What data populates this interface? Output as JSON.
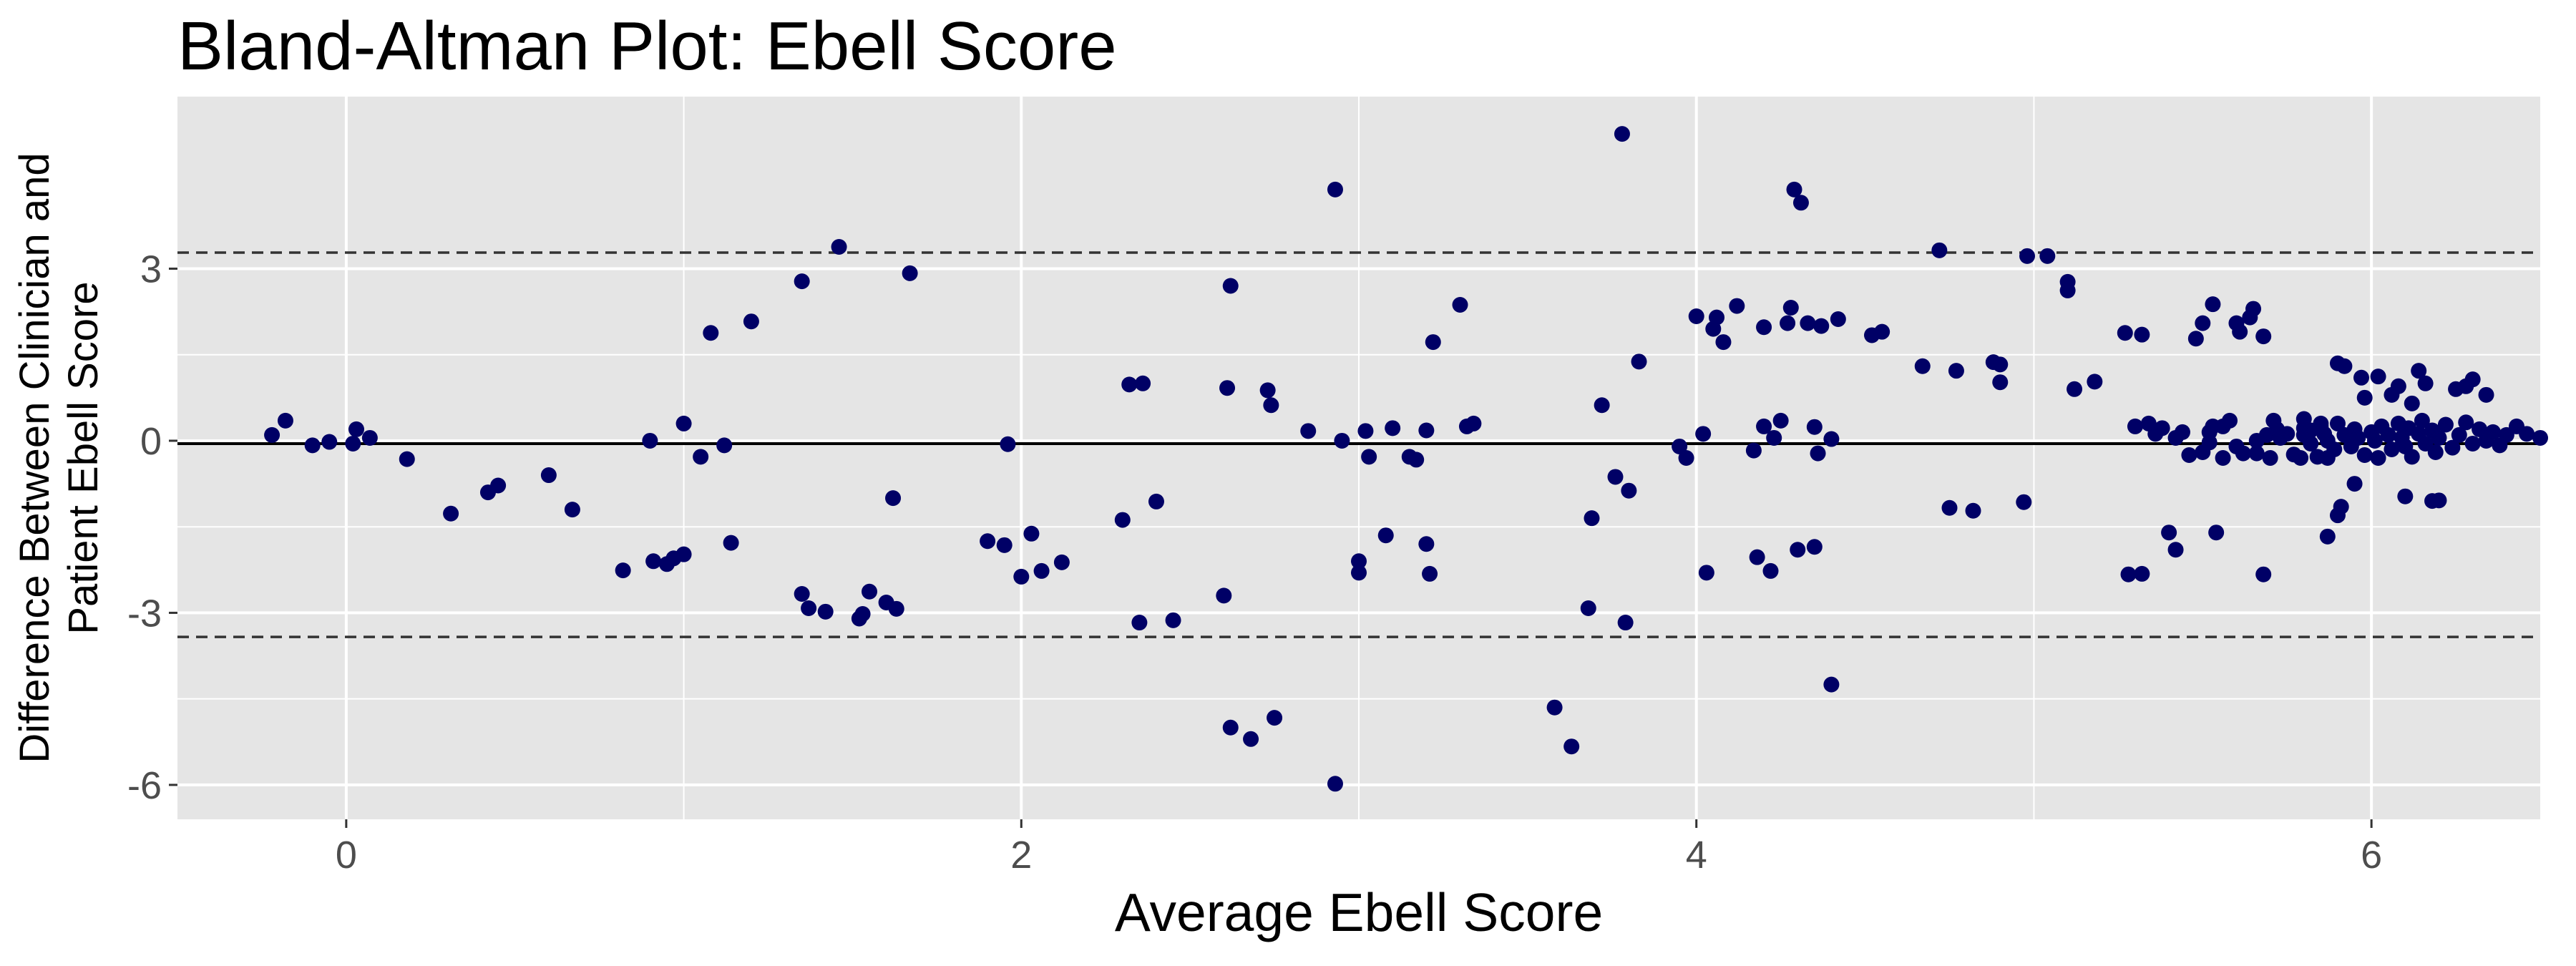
{
  "chart_data": {
    "type": "scatter",
    "title": "Bland-Altman Plot: Ebell Score",
    "xlabel": "Average Ebell Score",
    "ylabel_lines": [
      "Difference Between Clinician and",
      "Patient Ebell Score"
    ],
    "xlim": [
      -0.5,
      6.5
    ],
    "ylim": [
      -6.6,
      6.0
    ],
    "xticks": [
      0,
      2,
      4,
      6
    ],
    "xtick_labels": [
      "0",
      "2",
      "4",
      "6"
    ],
    "yticks": [
      -6,
      -3,
      0,
      3
    ],
    "ytick_labels": [
      "-6",
      "-3",
      "0",
      "3"
    ],
    "grid": true,
    "legend": "none",
    "mean_line": -0.05,
    "limits_of_agreement": [
      -3.42,
      3.28
    ],
    "colors": {
      "panel": "#e5e5e5",
      "grid": "#ffffff",
      "points": "#000066",
      "lines": "#000000"
    },
    "points": [
      [
        -0.22,
        0.1
      ],
      [
        -0.18,
        0.35
      ],
      [
        -0.1,
        -0.08
      ],
      [
        -0.05,
        -0.02
      ],
      [
        0.02,
        -0.05
      ],
      [
        0.03,
        0.2
      ],
      [
        0.07,
        0.05
      ],
      [
        0.18,
        -0.32
      ],
      [
        0.31,
        -1.27
      ],
      [
        0.42,
        -0.9
      ],
      [
        0.45,
        -0.78
      ],
      [
        0.6,
        -0.6
      ],
      [
        0.67,
        -1.2
      ],
      [
        0.82,
        -2.26
      ],
      [
        0.9,
        0.0
      ],
      [
        0.91,
        -2.1
      ],
      [
        0.95,
        -2.15
      ],
      [
        0.97,
        -2.05
      ],
      [
        1.0,
        -1.98
      ],
      [
        1.0,
        0.3
      ],
      [
        1.05,
        -0.28
      ],
      [
        1.08,
        1.88
      ],
      [
        1.12,
        -0.08
      ],
      [
        1.14,
        -1.78
      ],
      [
        1.2,
        2.08
      ],
      [
        1.35,
        -2.67
      ],
      [
        1.35,
        2.78
      ],
      [
        1.37,
        -2.92
      ],
      [
        1.42,
        -2.98
      ],
      [
        1.46,
        3.38
      ],
      [
        1.52,
        -3.1
      ],
      [
        1.53,
        -3.02
      ],
      [
        1.55,
        -2.63
      ],
      [
        1.6,
        -2.82
      ],
      [
        1.62,
        -1.0
      ],
      [
        1.63,
        -2.93
      ],
      [
        1.67,
        2.92
      ],
      [
        1.9,
        -1.75
      ],
      [
        1.95,
        -1.82
      ],
      [
        1.96,
        -0.06
      ],
      [
        2.0,
        -2.37
      ],
      [
        2.03,
        -1.62
      ],
      [
        2.06,
        -2.27
      ],
      [
        2.12,
        -2.12
      ],
      [
        2.3,
        -1.38
      ],
      [
        2.32,
        0.98
      ],
      [
        2.35,
        -3.17
      ],
      [
        2.36,
        1.0
      ],
      [
        2.4,
        -1.06
      ],
      [
        2.45,
        -3.13
      ],
      [
        2.6,
        -2.7
      ],
      [
        2.61,
        0.92
      ],
      [
        2.62,
        2.7
      ],
      [
        2.62,
        -5.0
      ],
      [
        2.68,
        -5.2
      ],
      [
        2.73,
        0.88
      ],
      [
        2.74,
        0.62
      ],
      [
        2.75,
        -4.83
      ],
      [
        2.85,
        0.17
      ],
      [
        2.93,
        4.38
      ],
      [
        2.93,
        -5.98
      ],
      [
        2.95,
        0.0
      ],
      [
        3.0,
        -2.1
      ],
      [
        3.0,
        -2.3
      ],
      [
        3.02,
        0.17
      ],
      [
        3.03,
        -0.28
      ],
      [
        3.08,
        -1.65
      ],
      [
        3.1,
        0.22
      ],
      [
        3.15,
        -0.28
      ],
      [
        3.17,
        -0.33
      ],
      [
        3.2,
        0.18
      ],
      [
        3.2,
        -1.8
      ],
      [
        3.21,
        -2.32
      ],
      [
        3.22,
        1.72
      ],
      [
        3.3,
        2.37
      ],
      [
        3.32,
        0.25
      ],
      [
        3.34,
        0.3
      ],
      [
        3.58,
        -4.65
      ],
      [
        3.63,
        -5.33
      ],
      [
        3.68,
        -2.92
      ],
      [
        3.69,
        -1.35
      ],
      [
        3.72,
        0.62
      ],
      [
        3.76,
        -0.63
      ],
      [
        3.78,
        5.35
      ],
      [
        3.79,
        -3.17
      ],
      [
        3.8,
        -0.87
      ],
      [
        3.83,
        1.38
      ],
      [
        3.95,
        -0.1
      ],
      [
        3.97,
        -0.3
      ],
      [
        4.0,
        2.17
      ],
      [
        4.02,
        0.12
      ],
      [
        4.03,
        -2.3
      ],
      [
        4.05,
        1.95
      ],
      [
        4.06,
        2.15
      ],
      [
        4.08,
        1.72
      ],
      [
        4.12,
        2.35
      ],
      [
        4.17,
        -0.17
      ],
      [
        4.18,
        -2.03
      ],
      [
        4.2,
        0.25
      ],
      [
        4.2,
        1.98
      ],
      [
        4.22,
        -2.27
      ],
      [
        4.23,
        0.05
      ],
      [
        4.25,
        0.35
      ],
      [
        4.27,
        2.05
      ],
      [
        4.28,
        2.32
      ],
      [
        4.29,
        4.38
      ],
      [
        4.3,
        -1.9
      ],
      [
        4.31,
        4.15
      ],
      [
        4.33,
        2.05
      ],
      [
        4.35,
        -1.85
      ],
      [
        4.35,
        0.24
      ],
      [
        4.36,
        -0.22
      ],
      [
        4.37,
        2.0
      ],
      [
        4.4,
        0.03
      ],
      [
        4.4,
        -4.25
      ],
      [
        4.42,
        2.12
      ],
      [
        4.52,
        1.84
      ],
      [
        4.55,
        1.9
      ],
      [
        4.67,
        1.3
      ],
      [
        4.72,
        3.32
      ],
      [
        4.75,
        -1.17
      ],
      [
        4.77,
        1.22
      ],
      [
        4.82,
        -1.22
      ],
      [
        4.88,
        1.37
      ],
      [
        4.9,
        1.33
      ],
      [
        4.9,
        1.02
      ],
      [
        4.97,
        -1.07
      ],
      [
        4.98,
        3.22
      ],
      [
        5.04,
        3.22
      ],
      [
        5.1,
        2.77
      ],
      [
        5.1,
        2.62
      ],
      [
        5.12,
        0.9
      ],
      [
        5.18,
        1.03
      ],
      [
        5.27,
        1.88
      ],
      [
        5.28,
        -2.33
      ],
      [
        5.3,
        0.25
      ],
      [
        5.32,
        -2.32
      ],
      [
        5.32,
        1.85
      ],
      [
        5.34,
        0.3
      ],
      [
        5.36,
        0.12
      ],
      [
        5.38,
        0.22
      ],
      [
        5.4,
        -1.6
      ],
      [
        5.42,
        0.05
      ],
      [
        5.42,
        -1.9
      ],
      [
        5.44,
        0.15
      ],
      [
        5.46,
        -0.25
      ],
      [
        5.48,
        1.78
      ],
      [
        5.5,
        -0.2
      ],
      [
        5.5,
        2.05
      ],
      [
        5.52,
        0.15
      ],
      [
        5.52,
        -0.03
      ],
      [
        5.53,
        0.25
      ],
      [
        5.53,
        2.38
      ],
      [
        5.54,
        -1.6
      ],
      [
        5.56,
        0.25
      ],
      [
        5.56,
        -0.3
      ],
      [
        5.58,
        0.35
      ],
      [
        5.6,
        -0.1
      ],
      [
        5.6,
        2.05
      ],
      [
        5.61,
        1.9
      ],
      [
        5.62,
        -0.22
      ],
      [
        5.64,
        2.15
      ],
      [
        5.65,
        2.3
      ],
      [
        5.66,
        -0.22
      ],
      [
        5.66,
        0.0
      ],
      [
        5.68,
        1.82
      ],
      [
        5.68,
        -2.33
      ],
      [
        5.69,
        0.1
      ],
      [
        5.7,
        -0.3
      ],
      [
        5.71,
        0.35
      ],
      [
        5.72,
        0.2
      ],
      [
        5.73,
        0.05
      ],
      [
        5.75,
        0.12
      ],
      [
        5.77,
        -0.24
      ],
      [
        5.79,
        -0.3
      ],
      [
        5.8,
        0.22
      ],
      [
        5.8,
        0.38
      ],
      [
        5.82,
        0.18
      ],
      [
        5.84,
        -0.28
      ],
      [
        5.85,
        0.3
      ],
      [
        5.86,
        0.12
      ],
      [
        5.87,
        -1.67
      ],
      [
        5.87,
        -0.3
      ],
      [
        5.9,
        -1.3
      ],
      [
        5.9,
        1.35
      ],
      [
        5.91,
        -1.15
      ],
      [
        5.92,
        1.3
      ],
      [
        5.95,
        -0.75
      ],
      [
        5.97,
        1.1
      ],
      [
        5.98,
        0.75
      ],
      [
        6.02,
        1.12
      ],
      [
        6.06,
        0.8
      ],
      [
        6.08,
        0.95
      ],
      [
        6.1,
        -0.97
      ],
      [
        6.12,
        0.65
      ],
      [
        6.14,
        1.22
      ],
      [
        6.16,
        1.0
      ],
      [
        6.18,
        -1.05
      ],
      [
        6.2,
        -1.04
      ],
      [
        6.25,
        0.9
      ],
      [
        6.28,
        0.95
      ],
      [
        6.3,
        1.07
      ],
      [
        6.34,
        0.8
      ],
      [
        5.8,
        0.1
      ],
      [
        5.82,
        -0.05
      ],
      [
        5.85,
        0.25
      ],
      [
        5.87,
        0.0
      ],
      [
        5.89,
        -0.15
      ],
      [
        5.9,
        0.3
      ],
      [
        5.92,
        0.1
      ],
      [
        5.94,
        -0.1
      ],
      [
        5.95,
        0.2
      ],
      [
        5.96,
        0.05
      ],
      [
        5.98,
        -0.25
      ],
      [
        6.0,
        0.15
      ],
      [
        6.01,
        0.0
      ],
      [
        6.02,
        -0.3
      ],
      [
        6.03,
        0.25
      ],
      [
        6.05,
        0.1
      ],
      [
        6.06,
        -0.15
      ],
      [
        6.08,
        0.3
      ],
      [
        6.09,
        0.05
      ],
      [
        6.1,
        -0.1
      ],
      [
        6.11,
        0.22
      ],
      [
        6.12,
        -0.28
      ],
      [
        6.14,
        0.12
      ],
      [
        6.15,
        0.35
      ],
      [
        6.16,
        -0.05
      ],
      [
        6.18,
        0.18
      ],
      [
        6.19,
        -0.2
      ],
      [
        6.2,
        0.05
      ],
      [
        6.22,
        0.28
      ],
      [
        6.24,
        -0.12
      ],
      [
        6.26,
        0.1
      ],
      [
        6.28,
        0.32
      ],
      [
        6.3,
        -0.05
      ],
      [
        6.32,
        0.2
      ],
      [
        6.34,
        0.0
      ],
      [
        6.36,
        0.15
      ],
      [
        6.38,
        -0.08
      ],
      [
        6.4,
        0.1
      ],
      [
        6.43,
        0.25
      ],
      [
        6.46,
        0.12
      ],
      [
        6.5,
        0.05
      ]
    ]
  }
}
